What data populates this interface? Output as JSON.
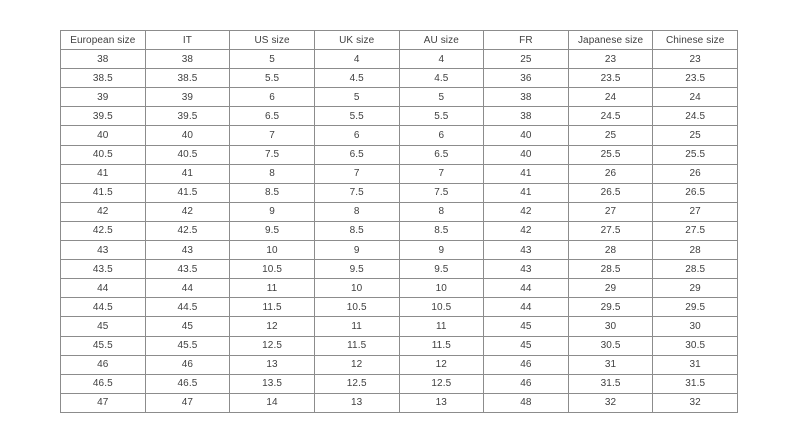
{
  "table": {
    "name": "shoe-size-conversion-table",
    "headers": [
      "European size",
      "IT",
      "US size",
      "UK size",
      "AU size",
      "FR",
      "Japanese size",
      "Chinese size"
    ],
    "rows": [
      [
        "38",
        "38",
        "5",
        "4",
        "4",
        "25",
        "23",
        "23"
      ],
      [
        "38.5",
        "38.5",
        "5.5",
        "4.5",
        "4.5",
        "36",
        "23.5",
        "23.5"
      ],
      [
        "39",
        "39",
        "6",
        "5",
        "5",
        "38",
        "24",
        "24"
      ],
      [
        "39.5",
        "39.5",
        "6.5",
        "5.5",
        "5.5",
        "38",
        "24.5",
        "24.5"
      ],
      [
        "40",
        "40",
        "7",
        "6",
        "6",
        "40",
        "25",
        "25"
      ],
      [
        "40.5",
        "40.5",
        "7.5",
        "6.5",
        "6.5",
        "40",
        "25.5",
        "25.5"
      ],
      [
        "41",
        "41",
        "8",
        "7",
        "7",
        "41",
        "26",
        "26"
      ],
      [
        "41.5",
        "41.5",
        "8.5",
        "7.5",
        "7.5",
        "41",
        "26.5",
        "26.5"
      ],
      [
        "42",
        "42",
        "9",
        "8",
        "8",
        "42",
        "27",
        "27"
      ],
      [
        "42.5",
        "42.5",
        "9.5",
        "8.5",
        "8.5",
        "42",
        "27.5",
        "27.5"
      ],
      [
        "43",
        "43",
        "10",
        "9",
        "9",
        "43",
        "28",
        "28"
      ],
      [
        "43.5",
        "43.5",
        "10.5",
        "9.5",
        "9.5",
        "43",
        "28.5",
        "28.5"
      ],
      [
        "44",
        "44",
        "11",
        "10",
        "10",
        "44",
        "29",
        "29"
      ],
      [
        "44.5",
        "44.5",
        "11.5",
        "10.5",
        "10.5",
        "44",
        "29.5",
        "29.5"
      ],
      [
        "45",
        "45",
        "12",
        "11",
        "11",
        "45",
        "30",
        "30"
      ],
      [
        "45.5",
        "45.5",
        "12.5",
        "11.5",
        "11.5",
        "45",
        "30.5",
        "30.5"
      ],
      [
        "46",
        "46",
        "13",
        "12",
        "12",
        "46",
        "31",
        "31"
      ],
      [
        "46.5",
        "46.5",
        "13.5",
        "12.5",
        "12.5",
        "46",
        "31.5",
        "31.5"
      ],
      [
        "47",
        "47",
        "14",
        "13",
        "13",
        "48",
        "32",
        "32"
      ]
    ]
  },
  "colors": {
    "background": "#ffffff",
    "border": "#8c8c8c",
    "text": "#3f3f3f"
  }
}
